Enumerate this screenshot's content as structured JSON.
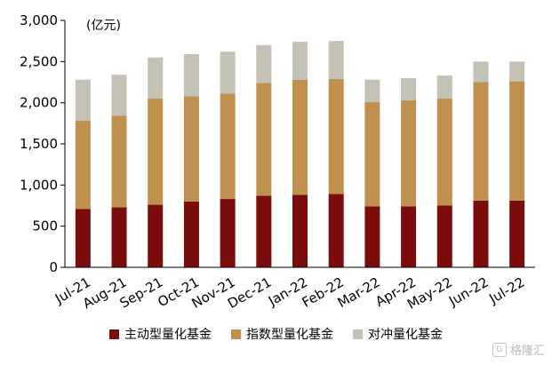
{
  "colors": {
    "active": "#7a0c0c",
    "index": "#c0904f",
    "hedge": "#c4c1b5",
    "axis": "#000000"
  },
  "unit_label": "(亿元)",
  "legend": [
    {
      "label": "主动型量化基金",
      "color": "#7a0c0c"
    },
    {
      "label": "指数型量化基金",
      "color": "#c0904f"
    },
    {
      "label": "对冲量化基金",
      "color": "#c4c1b5"
    }
  ],
  "watermark": {
    "text": "格隆汇",
    "icon": "gelonghui-logo-icon"
  },
  "chart_data": {
    "type": "bar",
    "stacked": true,
    "categories": [
      "Jul-21",
      "Aug-21",
      "Sep-21",
      "Oct-21",
      "Nov-21",
      "Dec-21",
      "Jan-22",
      "Feb-22",
      "Mar-22",
      "Apr-22",
      "May-22",
      "Jun-22",
      "Jul-22"
    ],
    "series": [
      {
        "name": "主动型量化基金",
        "color": "#7a0c0c",
        "values": [
          710,
          730,
          760,
          800,
          830,
          870,
          880,
          890,
          740,
          740,
          750,
          810,
          810
        ]
      },
      {
        "name": "指数型量化基金",
        "color": "#c0904f",
        "values": [
          1070,
          1110,
          1290,
          1280,
          1280,
          1370,
          1400,
          1400,
          1270,
          1290,
          1300,
          1440,
          1450
        ]
      },
      {
        "name": "对冲量化基金",
        "color": "#c4c1b5",
        "values": [
          500,
          500,
          500,
          510,
          510,
          460,
          460,
          460,
          270,
          270,
          280,
          250,
          240
        ]
      }
    ],
    "ylim": [
      0,
      3000
    ],
    "yticks": [
      0,
      500,
      1000,
      1500,
      2000,
      2500,
      3000
    ],
    "ytick_labels": [
      "0",
      "500",
      "1,000",
      "1,500",
      "2,000",
      "2,500",
      "3,000"
    ],
    "grid": false,
    "legend_position": "bottom"
  }
}
